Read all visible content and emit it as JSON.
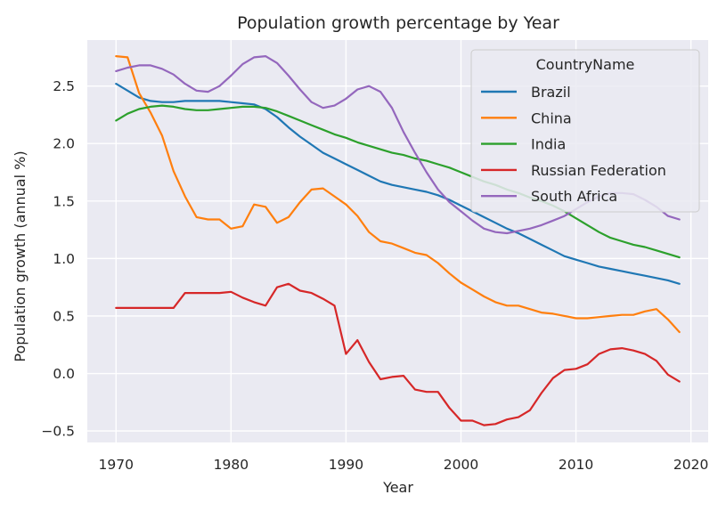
{
  "chart_data": {
    "type": "line",
    "title": "Population growth percentage by Year",
    "xlabel": "Year",
    "ylabel": "Population growth (annual %)",
    "xlim": [
      1967.5,
      2021.5
    ],
    "ylim": [
      -0.6,
      2.9
    ],
    "xticks": [
      1970,
      1980,
      1990,
      2000,
      2010,
      2020
    ],
    "yticks": [
      -0.5,
      0.0,
      0.5,
      1.0,
      1.5,
      2.0,
      2.5
    ],
    "ytick_labels": [
      "−0.5",
      "0.0",
      "0.5",
      "1.0",
      "1.5",
      "2.0",
      "2.5"
    ],
    "grid": true,
    "legend": {
      "title": "CountryName",
      "placement": "top-right"
    },
    "x": [
      1970,
      1971,
      1972,
      1973,
      1974,
      1975,
      1976,
      1977,
      1978,
      1979,
      1980,
      1981,
      1982,
      1983,
      1984,
      1985,
      1986,
      1987,
      1988,
      1989,
      1990,
      1991,
      1992,
      1993,
      1994,
      1995,
      1996,
      1997,
      1998,
      1999,
      2000,
      2001,
      2002,
      2003,
      2004,
      2005,
      2006,
      2007,
      2008,
      2009,
      2010,
      2011,
      2012,
      2013,
      2014,
      2015,
      2016,
      2017,
      2018,
      2019
    ],
    "series": [
      {
        "name": "Brazil",
        "color": "#1f77b4",
        "values": [
          2.52,
          2.46,
          2.4,
          2.37,
          2.36,
          2.36,
          2.37,
          2.37,
          2.37,
          2.37,
          2.36,
          2.35,
          2.34,
          2.3,
          2.23,
          2.14,
          2.06,
          1.99,
          1.92,
          1.87,
          1.82,
          1.77,
          1.72,
          1.67,
          1.64,
          1.62,
          1.6,
          1.58,
          1.55,
          1.51,
          1.46,
          1.41,
          1.36,
          1.31,
          1.26,
          1.22,
          1.17,
          1.12,
          1.07,
          1.02,
          0.99,
          0.96,
          0.93,
          0.91,
          0.89,
          0.87,
          0.85,
          0.83,
          0.81,
          0.78
        ]
      },
      {
        "name": "China",
        "color": "#ff7f0e",
        "values": [
          2.76,
          2.75,
          2.44,
          2.27,
          2.07,
          1.76,
          1.54,
          1.36,
          1.34,
          1.34,
          1.26,
          1.28,
          1.47,
          1.45,
          1.31,
          1.36,
          1.49,
          1.6,
          1.61,
          1.54,
          1.47,
          1.37,
          1.23,
          1.15,
          1.13,
          1.09,
          1.05,
          1.03,
          0.96,
          0.87,
          0.79,
          0.73,
          0.67,
          0.62,
          0.59,
          0.59,
          0.56,
          0.53,
          0.52,
          0.5,
          0.48,
          0.48,
          0.49,
          0.5,
          0.51,
          0.51,
          0.54,
          0.56,
          0.47,
          0.36
        ]
      },
      {
        "name": "India",
        "color": "#2ca02c",
        "values": [
          2.2,
          2.26,
          2.3,
          2.32,
          2.33,
          2.32,
          2.3,
          2.29,
          2.29,
          2.3,
          2.31,
          2.32,
          2.32,
          2.31,
          2.28,
          2.24,
          2.2,
          2.16,
          2.12,
          2.08,
          2.05,
          2.01,
          1.98,
          1.95,
          1.92,
          1.9,
          1.87,
          1.85,
          1.82,
          1.79,
          1.75,
          1.71,
          1.67,
          1.64,
          1.6,
          1.57,
          1.53,
          1.5,
          1.46,
          1.41,
          1.35,
          1.29,
          1.23,
          1.18,
          1.15,
          1.12,
          1.1,
          1.07,
          1.04,
          1.01
        ]
      },
      {
        "name": "Russian Federation",
        "color": "#d62728",
        "values": [
          0.57,
          0.57,
          0.57,
          0.57,
          0.57,
          0.57,
          0.7,
          0.7,
          0.7,
          0.7,
          0.71,
          0.66,
          0.62,
          0.59,
          0.75,
          0.78,
          0.72,
          0.7,
          0.65,
          0.59,
          0.17,
          0.29,
          0.1,
          -0.05,
          -0.03,
          -0.02,
          -0.14,
          -0.16,
          -0.16,
          -0.3,
          -0.41,
          -0.41,
          -0.45,
          -0.44,
          -0.4,
          -0.38,
          -0.32,
          -0.17,
          -0.04,
          0.03,
          0.04,
          0.08,
          0.17,
          0.21,
          0.22,
          0.2,
          0.17,
          0.11,
          -0.01,
          -0.07
        ]
      },
      {
        "name": "South Africa",
        "color": "#9467bd",
        "values": [
          2.63,
          2.66,
          2.68,
          2.68,
          2.65,
          2.6,
          2.52,
          2.46,
          2.45,
          2.5,
          2.59,
          2.69,
          2.75,
          2.76,
          2.7,
          2.59,
          2.47,
          2.36,
          2.31,
          2.33,
          2.39,
          2.47,
          2.5,
          2.45,
          2.31,
          2.1,
          1.92,
          1.75,
          1.6,
          1.49,
          1.41,
          1.33,
          1.26,
          1.23,
          1.22,
          1.24,
          1.26,
          1.29,
          1.33,
          1.37,
          1.43,
          1.49,
          1.54,
          1.57,
          1.57,
          1.56,
          1.51,
          1.45,
          1.37,
          1.34
        ]
      }
    ]
  }
}
